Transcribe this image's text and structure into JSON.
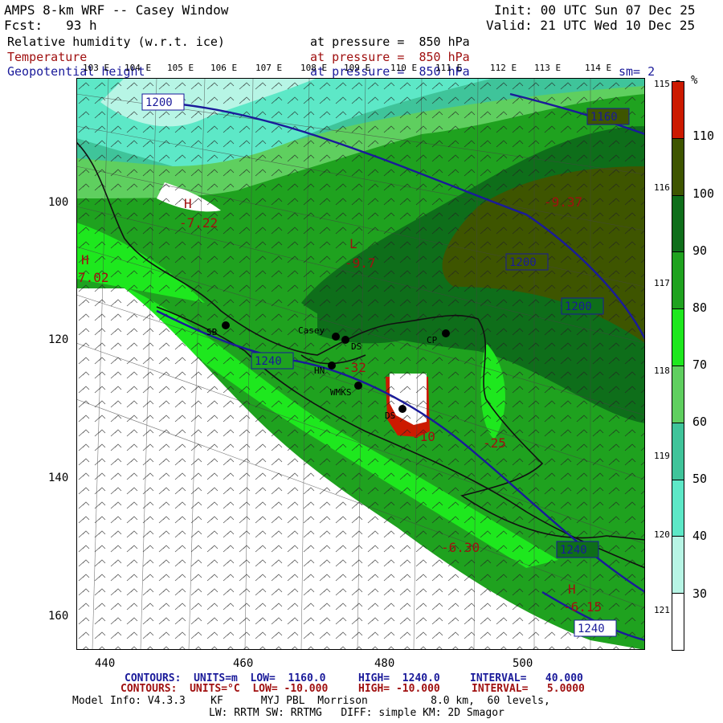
{
  "header": {
    "title": "AMPS 8-km WRF -- Casey Window",
    "init": "Init: 00 UTC Sun 07 Dec 25",
    "fcst": "Fcst:   93 h",
    "valid": "Valid: 21 UTC Wed 10 Dec 25",
    "field1": "Relative humidity (w.r.t. ice)",
    "field1_level": "at pressure =  850 hPa",
    "field2": "Temperature",
    "field2_level": "at pressure =  850 hPa",
    "field3": "Geopotential height",
    "field3_level": "at pressure =  850 hPa",
    "smooth": "sm= 2"
  },
  "lon_labels": [
    "103 E",
    "104 E",
    "105 E",
    "106 E",
    "107 E",
    "108 E",
    "109 E",
    "110 E",
    "111 E",
    "112 E",
    "113 E",
    "114 E"
  ],
  "right_lon_labels": [
    "115 E",
    "116 E",
    "117 E",
    "118 E",
    "119 E",
    "120 E",
    "121 E"
  ],
  "x_ticks": [
    "440",
    "460",
    "480",
    "500"
  ],
  "y_ticks": [
    "100",
    "120",
    "140",
    "160"
  ],
  "colorbar": {
    "unit": "%",
    "labels": [
      "110",
      "100",
      "90",
      "80",
      "70",
      "60",
      "50",
      "40",
      "30"
    ],
    "colors": [
      "#cc1a00",
      "#3e5500",
      "#0e6e1a",
      "#1fa21f",
      "#1ee81e",
      "#5fcf5f",
      "#3fc49a",
      "#5de8c7",
      "#b7f5e5",
      "#ffffff"
    ]
  },
  "map": {
    "stations": [
      {
        "label": "SB"
      },
      {
        "label": "Casey"
      },
      {
        "label": "DS"
      },
      {
        "label": "HN"
      },
      {
        "label": "WMKS"
      },
      {
        "label": "CP"
      },
      {
        "label": "DS"
      }
    ],
    "height_contour_labels": [
      "1200",
      "1160",
      "1200",
      "1200",
      "1240",
      "1240",
      "1240"
    ],
    "temp_labels": [
      "H",
      "-7.22",
      "H",
      "7.02",
      "L",
      "-9.7",
      "-9.37",
      "-32",
      "-25",
      "-6.30",
      "H",
      "-6.15",
      "-10"
    ]
  },
  "footer": {
    "line1_a": "CONTOURS:  UNITS=m  LOW=  1160.0",
    "line1_b": "HIGH=  1240.0",
    "line1_c": "INTERVAL=   40.000",
    "line2_a": "CONTOURS:  UNITS=°C  LOW= -10.000",
    "line2_b": "HIGH= -10.000",
    "line2_c": "INTERVAL=   5.0000",
    "model_info": "Model Info: V4.3.3    KF      MYJ PBL  Morrison          8.0 km,  60 levels,",
    "physics": "LW: RRTM SW: RRTMG   DIFF: simple KM: 2D Smagor"
  }
}
